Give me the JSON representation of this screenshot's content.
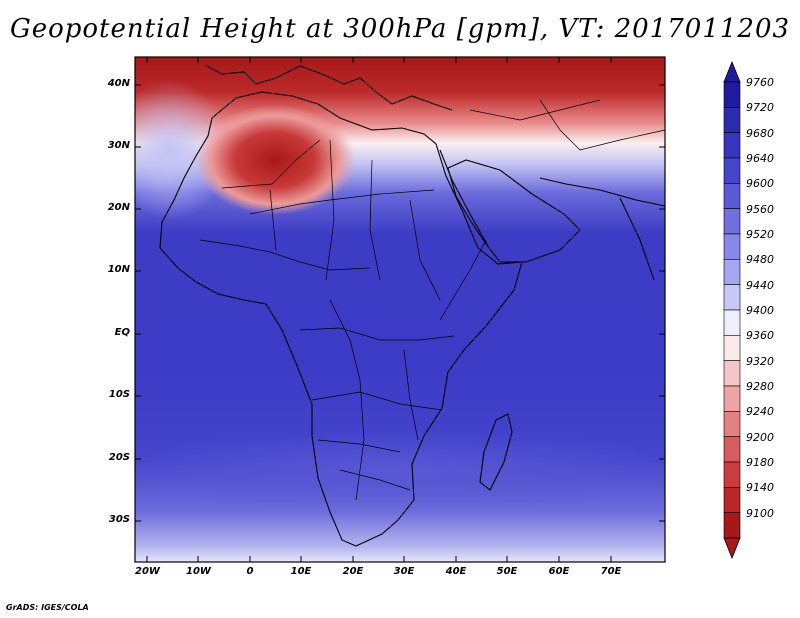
{
  "title": "Geopotential Height at 300hPa [gpm], VT: 2017011203",
  "credit": "GrADS: IGES/COLA",
  "lat_ticks": [
    "40N",
    "30N",
    "20N",
    "10N",
    "EQ",
    "10S",
    "20S",
    "30S"
  ],
  "lon_ticks": [
    "20W",
    "10W",
    "0",
    "10E",
    "20E",
    "30E",
    "40E",
    "50E",
    "60E",
    "70E"
  ],
  "colorbar": {
    "labels": [
      "9760",
      "9720",
      "9680",
      "9640",
      "9600",
      "9560",
      "9520",
      "9480",
      "9440",
      "9400",
      "9360",
      "9320",
      "9280",
      "9240",
      "9200",
      "9180",
      "9140",
      "9100"
    ],
    "colors": [
      "#1f1a9e",
      "#2b2bb0",
      "#3535c0",
      "#4444cc",
      "#5a5ad6",
      "#7070e0",
      "#8888e8",
      "#a6a6f0",
      "#c8c8f6",
      "#eeeefc",
      "#fbeaea",
      "#f6c6c6",
      "#eea4a4",
      "#e48080",
      "#d85c5c",
      "#cc3c3c",
      "#bb2626",
      "#a81818"
    ]
  }
}
